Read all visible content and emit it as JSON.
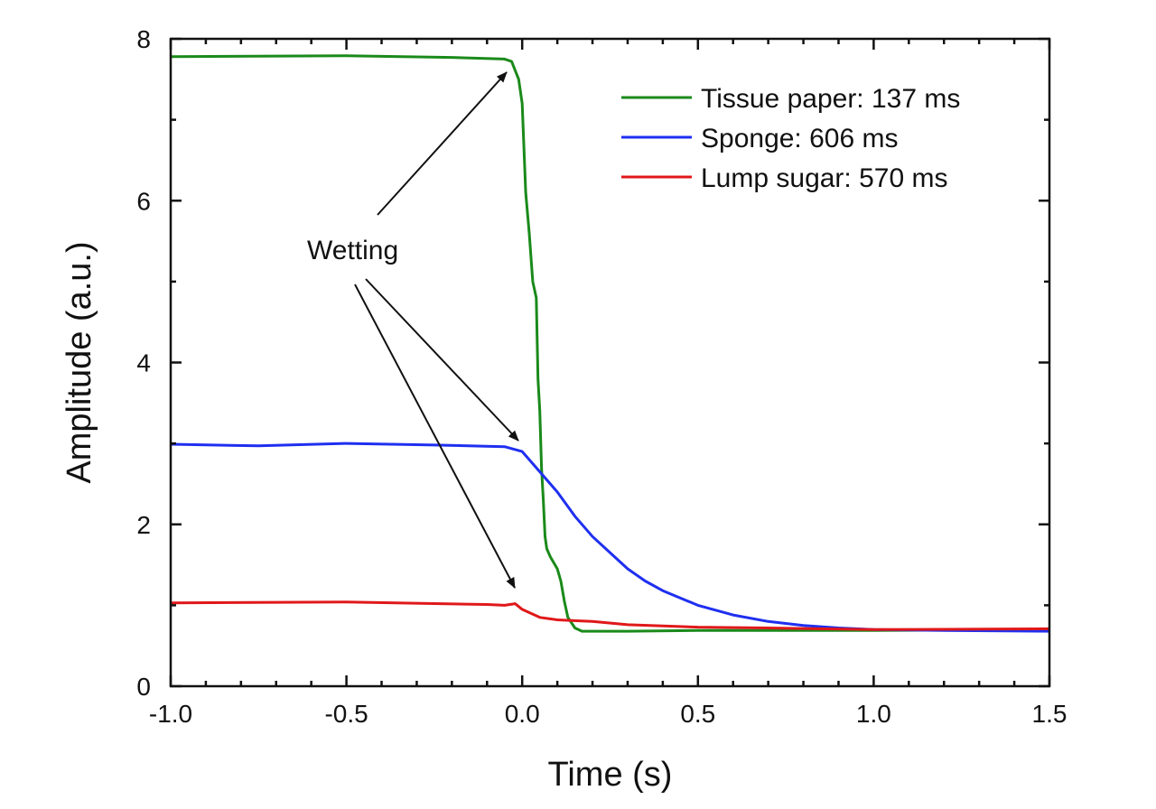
{
  "chart_data": {
    "type": "line",
    "xlabel": "Time (s)",
    "ylabel": "Amplitude (a.u.)",
    "xlim": [
      -1.0,
      1.5
    ],
    "ylim": [
      0,
      8
    ],
    "xticks": [
      -1.0,
      -0.5,
      0.0,
      0.5,
      1.0,
      1.5
    ],
    "xtick_labels": [
      "-1.0",
      "-0.5",
      "0.0",
      "0.5",
      "1.0",
      "1.5"
    ],
    "yticks": [
      0,
      2,
      4,
      6,
      8
    ],
    "ytick_labels": [
      "0",
      "2",
      "4",
      "6",
      "8"
    ],
    "grid": false,
    "legend_position": "top-right",
    "series": [
      {
        "name": "Tissue paper: 137 ms",
        "color": "#1a8a1a",
        "x": [
          -1.0,
          -0.5,
          -0.2,
          -0.05,
          -0.03,
          -0.01,
          0.0,
          0.01,
          0.02,
          0.03,
          0.04,
          0.045,
          0.05,
          0.055,
          0.06,
          0.065,
          0.07,
          0.08,
          0.1,
          0.11,
          0.12,
          0.13,
          0.15,
          0.17,
          0.2,
          0.3,
          0.5,
          1.0,
          1.5
        ],
        "y": [
          7.78,
          7.79,
          7.77,
          7.75,
          7.72,
          7.5,
          7.2,
          6.1,
          5.6,
          5.0,
          4.8,
          3.8,
          3.4,
          2.7,
          2.3,
          1.85,
          1.7,
          1.6,
          1.45,
          1.3,
          1.05,
          0.85,
          0.72,
          0.68,
          0.68,
          0.68,
          0.69,
          0.69,
          0.7
        ]
      },
      {
        "name": "Sponge: 606 ms",
        "color": "#1f2ff0",
        "x": [
          -1.0,
          -0.75,
          -0.5,
          -0.25,
          -0.05,
          0.0,
          0.05,
          0.1,
          0.15,
          0.2,
          0.25,
          0.3,
          0.35,
          0.4,
          0.5,
          0.6,
          0.7,
          0.8,
          0.9,
          1.0,
          1.2,
          1.5
        ],
        "y": [
          2.99,
          2.97,
          3.0,
          2.98,
          2.96,
          2.9,
          2.65,
          2.4,
          2.1,
          1.85,
          1.65,
          1.45,
          1.3,
          1.18,
          1.0,
          0.88,
          0.8,
          0.75,
          0.72,
          0.7,
          0.69,
          0.68
        ]
      },
      {
        "name": "Lump sugar: 570 ms",
        "color": "#e0181a",
        "x": [
          -1.0,
          -0.5,
          -0.1,
          -0.05,
          -0.02,
          0.0,
          0.05,
          0.1,
          0.2,
          0.3,
          0.5,
          0.7,
          1.0,
          1.5
        ],
        "y": [
          1.03,
          1.04,
          1.01,
          1.0,
          1.02,
          0.95,
          0.85,
          0.82,
          0.8,
          0.76,
          0.73,
          0.72,
          0.7,
          0.71
        ]
      }
    ],
    "annotations": [
      {
        "text": "Wetting"
      }
    ]
  }
}
